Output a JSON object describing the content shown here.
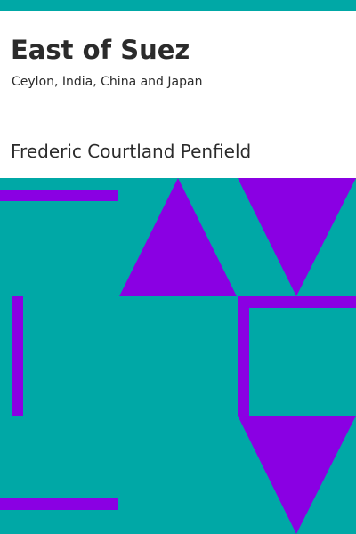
{
  "book": {
    "title": "East of Suez",
    "subtitle": "Ceylon, India, China and Japan",
    "author": "Frederic Courtland Penfield"
  },
  "colors": {
    "background": "#00a8a6",
    "accent": "#8a00e3",
    "panel": "#ffffff",
    "text": "#2b2b2b"
  },
  "art_shapes": [
    "horizontal-bar",
    "upward-triangle",
    "downward-triangle",
    "vertical-bar",
    "square-outline",
    "downward-triangle",
    "horizontal-bar"
  ]
}
